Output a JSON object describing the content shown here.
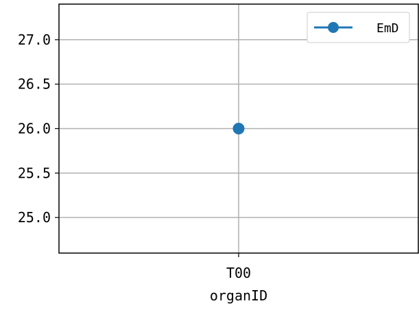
{
  "chart_data": {
    "type": "line",
    "categories": [
      "T00"
    ],
    "series": [
      {
        "name": "EmD",
        "values": [
          26.0
        ],
        "color": "#1f77b4",
        "marker": "circle"
      }
    ],
    "xlabel": "organID",
    "ylabel": "",
    "ylim": [
      24.6,
      27.4
    ],
    "yticks": [
      25.0,
      25.5,
      26.0,
      26.5,
      27.0
    ],
    "ytick_labels": [
      "25.0",
      "25.5",
      "26.0",
      "26.5",
      "27.0"
    ],
    "grid": true,
    "legend": "top-right"
  }
}
